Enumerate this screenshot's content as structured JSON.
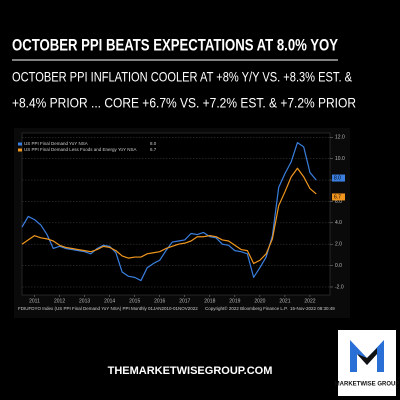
{
  "chart_data": {
    "type": "line",
    "title": "OCTOBER PPI BEATS EXPECTATIONS AT 8.0% YOY",
    "subtitle_lines": [
      "OCTOBER PPI INFLATION COOLER AT +8% Y/Y VS. +8.3% EST. &",
      "+8.4% PRIOR ... CORE +6.7% VS. +7.2% EST. & +7.2% PRIOR"
    ],
    "x": [
      2011,
      2011.25,
      2011.5,
      2011.75,
      2012,
      2012.25,
      2012.5,
      2012.75,
      2013,
      2013.25,
      2013.5,
      2013.75,
      2014,
      2014.25,
      2014.5,
      2014.75,
      2015,
      2015.25,
      2015.5,
      2015.75,
      2016,
      2016.25,
      2016.5,
      2016.75,
      2017,
      2017.25,
      2017.5,
      2017.75,
      2018,
      2018.25,
      2018.5,
      2018.75,
      2019,
      2019.25,
      2019.5,
      2019.75,
      2020,
      2020.25,
      2020.5,
      2020.75,
      2021,
      2021.25,
      2021.5,
      2021.75,
      2022,
      2022.25,
      2022.5,
      2022.75
    ],
    "series": [
      {
        "name": "US PPI Final Demand YoY NSA",
        "color": "#3a7fe0",
        "latest": "8.0",
        "values": [
          3.6,
          4.6,
          4.3,
          3.8,
          2.9,
          1.6,
          1.8,
          1.6,
          1.5,
          1.4,
          1.3,
          1.1,
          1.6,
          1.9,
          1.8,
          1.2,
          -0.6,
          -1.0,
          -1.1,
          -1.4,
          -0.2,
          0.2,
          0.5,
          1.4,
          2.2,
          2.3,
          2.4,
          3.0,
          2.9,
          3.1,
          2.7,
          2.6,
          2.0,
          1.9,
          1.4,
          1.3,
          1.1,
          -1.1,
          -0.2,
          0.8,
          2.8,
          7.3,
          8.6,
          9.7,
          11.5,
          11.1,
          8.7,
          8.0
        ]
      },
      {
        "name": "US PPI Final Demand Less Foods and Energy YoY NSA",
        "color": "#f0961e",
        "latest": "6.7",
        "values": [
          2.0,
          2.4,
          2.8,
          2.6,
          2.5,
          2.3,
          1.9,
          1.7,
          1.6,
          1.5,
          1.4,
          1.3,
          1.5,
          1.8,
          1.7,
          1.4,
          0.9,
          0.7,
          0.8,
          0.8,
          1.1,
          1.2,
          1.3,
          1.6,
          1.8,
          2.0,
          2.1,
          2.3,
          2.7,
          2.7,
          2.8,
          2.7,
          2.4,
          2.3,
          1.9,
          1.5,
          1.4,
          0.2,
          0.5,
          1.1,
          2.5,
          5.6,
          6.9,
          8.3,
          9.1,
          8.3,
          7.2,
          6.7
        ]
      }
    ],
    "xlim": [
      2011,
      2023.3
    ],
    "xticks": [
      {
        "value": 2011.5,
        "label": "2011"
      },
      {
        "value": 2012.5,
        "label": "2012"
      },
      {
        "value": 2013.5,
        "label": "2013"
      },
      {
        "value": 2014.5,
        "label": "2014"
      },
      {
        "value": 2015.5,
        "label": "2015"
      },
      {
        "value": 2016.5,
        "label": "2016"
      },
      {
        "value": 2017.5,
        "label": "2017"
      },
      {
        "value": 2018.5,
        "label": "2018"
      },
      {
        "value": 2019.5,
        "label": "2019"
      },
      {
        "value": 2020.5,
        "label": "2020"
      },
      {
        "value": 2021.5,
        "label": "2021"
      },
      {
        "value": 2022.5,
        "label": "2022"
      }
    ],
    "ylim": [
      -2.75,
      12.4
    ],
    "yticks": [
      {
        "value": 12,
        "label": "12.0"
      },
      {
        "value": 10,
        "label": "10.0"
      },
      {
        "value": 8,
        "label": "8.0"
      },
      {
        "value": 6,
        "label": "6.0"
      },
      {
        "value": 4,
        "label": "4.0"
      },
      {
        "value": 2,
        "label": "2.0"
      },
      {
        "value": 0,
        "label": "0.0"
      },
      {
        "value": -2,
        "label": "-2.0"
      }
    ],
    "grid": true,
    "source": "FDIUFDYO Index (US PPI Final Demand YoY NSA) PPI Monthly 01JAN2010-01NOV2022",
    "copyright": "Copyright© 2022 Bloomberg Finance L.P.",
    "timestamp": "15-Nov-2022 08:30:49"
  },
  "website": "THEMARKETWISEGROUP.COM",
  "logo_text": "MARKETWISE GROUP"
}
